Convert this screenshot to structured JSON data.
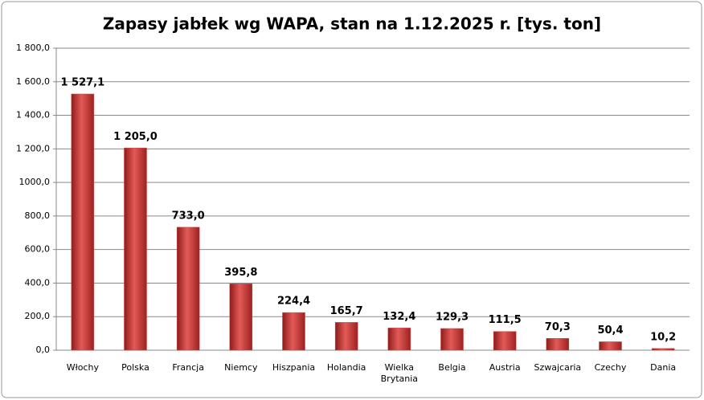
{
  "chart_data": {
    "type": "bar",
    "title": "Zapasy jabłek wg WAPA, stan na 1.12.2025  r. [tys. ton]",
    "categories": [
      "Włochy",
      "Polska",
      "Francja",
      "Niemcy",
      "Hiszpania",
      "Holandia",
      "Wielka Brytania",
      "Belgia",
      "Austria",
      "Szwajcaria",
      "Czechy",
      "Dania"
    ],
    "values": [
      1527.1,
      1205.0,
      733.0,
      395.8,
      224.4,
      165.7,
      132.4,
      129.3,
      111.5,
      70.3,
      50.4,
      10.2
    ],
    "value_labels": [
      "1 527,1",
      "1 205,0",
      "733,0",
      "395,8",
      "224,4",
      "165,7",
      "132,4",
      "129,3",
      "111,5",
      "70,3",
      "50,4",
      "10,2"
    ],
    "color": "#d9413f",
    "ylim": [
      0,
      1800
    ],
    "yticks": [
      {
        "value": 0,
        "label": "0,0"
      },
      {
        "value": 200,
        "label": "200,0"
      },
      {
        "value": 400,
        "label": "400,0"
      },
      {
        "value": 600,
        "label": "600,0"
      },
      {
        "value": 800,
        "label": "800,0"
      },
      {
        "value": 1000,
        "label": "1000,0"
      },
      {
        "value": 1200,
        "label": "1 200,0"
      },
      {
        "value": 1400,
        "label": "1 400,0"
      },
      {
        "value": 1600,
        "label": "1 600,0"
      },
      {
        "value": 1800,
        "label": "1 800,0"
      }
    ],
    "grid": true
  }
}
